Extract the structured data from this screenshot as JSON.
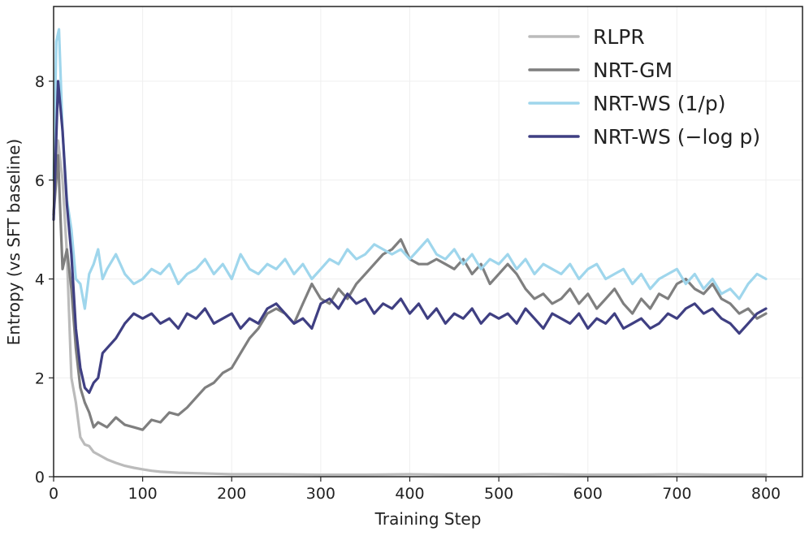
{
  "chart_data": {
    "type": "line",
    "title": "",
    "xlabel": "Training Step",
    "ylabel": "Entropy (vs SFT baseline)",
    "xlim": [
      0,
      800
    ],
    "ylim": [
      0,
      9.5
    ],
    "xticks": [
      0,
      100,
      200,
      300,
      400,
      500,
      600,
      700,
      800
    ],
    "yticks": [
      0,
      2,
      4,
      6,
      8
    ],
    "xtick_labels": [
      "0",
      "100",
      "200",
      "300",
      "400",
      "500",
      "600",
      "700",
      "800"
    ],
    "ytick_labels": [
      "0",
      "2",
      "4",
      "6",
      "8"
    ],
    "grid": true,
    "legend_position": "top-right",
    "series": [
      {
        "name": "RLPR",
        "color": "#bbbbbb",
        "x": [
          0,
          5,
          10,
          15,
          20,
          25,
          30,
          35,
          40,
          45,
          50,
          60,
          70,
          80,
          90,
          100,
          110,
          120,
          140,
          160,
          180,
          200,
          250,
          300,
          350,
          400,
          450,
          500,
          550,
          600,
          650,
          700,
          750,
          800
        ],
        "values": [
          5.3,
          6.8,
          6.0,
          4.5,
          2.0,
          1.5,
          0.8,
          0.65,
          0.62,
          0.5,
          0.45,
          0.35,
          0.28,
          0.22,
          0.18,
          0.15,
          0.12,
          0.1,
          0.08,
          0.07,
          0.06,
          0.05,
          0.05,
          0.04,
          0.04,
          0.05,
          0.04,
          0.04,
          0.05,
          0.04,
          0.04,
          0.05,
          0.04,
          0.04
        ]
      },
      {
        "name": "NRT-GM",
        "color": "#7f7f7f",
        "x": [
          0,
          5,
          10,
          15,
          20,
          25,
          30,
          35,
          40,
          45,
          50,
          60,
          70,
          80,
          90,
          100,
          110,
          120,
          130,
          140,
          150,
          160,
          170,
          180,
          190,
          200,
          210,
          220,
          230,
          240,
          250,
          260,
          270,
          280,
          290,
          300,
          310,
          320,
          330,
          340,
          350,
          360,
          370,
          380,
          390,
          400,
          410,
          420,
          430,
          440,
          450,
          460,
          470,
          480,
          490,
          500,
          510,
          520,
          530,
          540,
          550,
          560,
          570,
          580,
          590,
          600,
          610,
          620,
          630,
          640,
          650,
          660,
          670,
          680,
          690,
          700,
          710,
          720,
          730,
          740,
          750,
          760,
          770,
          780,
          790,
          800
        ],
        "values": [
          5.3,
          6.5,
          4.2,
          4.6,
          3.8,
          2.6,
          1.8,
          1.5,
          1.3,
          1.0,
          1.1,
          1.0,
          1.2,
          1.05,
          1.0,
          0.95,
          1.15,
          1.1,
          1.3,
          1.25,
          1.4,
          1.6,
          1.8,
          1.9,
          2.1,
          2.2,
          2.5,
          2.8,
          3.0,
          3.3,
          3.4,
          3.3,
          3.1,
          3.5,
          3.9,
          3.6,
          3.5,
          3.8,
          3.6,
          3.9,
          4.1,
          4.3,
          4.5,
          4.6,
          4.8,
          4.4,
          4.3,
          4.3,
          4.4,
          4.3,
          4.2,
          4.4,
          4.1,
          4.3,
          3.9,
          4.1,
          4.3,
          4.1,
          3.8,
          3.6,
          3.7,
          3.5,
          3.6,
          3.8,
          3.5,
          3.7,
          3.4,
          3.6,
          3.8,
          3.5,
          3.3,
          3.6,
          3.4,
          3.7,
          3.6,
          3.9,
          4.0,
          3.8,
          3.7,
          3.9,
          3.6,
          3.5,
          3.3,
          3.4,
          3.2,
          3.3
        ]
      },
      {
        "name": "NRT-WS (1/p)",
        "color": "#9fd6ec",
        "x": [
          0,
          3,
          6,
          10,
          15,
          20,
          25,
          30,
          35,
          40,
          45,
          50,
          55,
          60,
          70,
          80,
          90,
          100,
          110,
          120,
          130,
          140,
          150,
          160,
          170,
          180,
          190,
          200,
          210,
          220,
          230,
          240,
          250,
          260,
          270,
          280,
          290,
          300,
          310,
          320,
          330,
          340,
          350,
          360,
          370,
          380,
          390,
          400,
          410,
          420,
          430,
          440,
          450,
          460,
          470,
          480,
          490,
          500,
          510,
          520,
          530,
          540,
          550,
          560,
          570,
          580,
          590,
          600,
          610,
          620,
          630,
          640,
          650,
          660,
          670,
          680,
          690,
          700,
          710,
          720,
          730,
          740,
          750,
          760,
          770,
          780,
          790,
          800
        ],
        "values": [
          6.0,
          8.8,
          9.05,
          7.0,
          5.6,
          5.0,
          4.0,
          3.9,
          3.4,
          4.1,
          4.3,
          4.6,
          4.0,
          4.2,
          4.5,
          4.1,
          3.9,
          4.0,
          4.2,
          4.1,
          4.3,
          3.9,
          4.1,
          4.2,
          4.4,
          4.1,
          4.3,
          4.0,
          4.5,
          4.2,
          4.1,
          4.3,
          4.2,
          4.4,
          4.1,
          4.3,
          4.0,
          4.2,
          4.4,
          4.3,
          4.6,
          4.4,
          4.5,
          4.7,
          4.6,
          4.5,
          4.6,
          4.4,
          4.6,
          4.8,
          4.5,
          4.4,
          4.6,
          4.3,
          4.5,
          4.2,
          4.4,
          4.3,
          4.5,
          4.2,
          4.4,
          4.1,
          4.3,
          4.2,
          4.1,
          4.3,
          4.0,
          4.2,
          4.3,
          4.0,
          4.1,
          4.2,
          3.9,
          4.1,
          3.8,
          4.0,
          4.1,
          4.2,
          3.9,
          4.1,
          3.8,
          4.0,
          3.7,
          3.8,
          3.6,
          3.9,
          4.1,
          4.0
        ]
      },
      {
        "name": "NRT-WS (−log p)",
        "color": "#3f3f82",
        "x": [
          0,
          5,
          10,
          15,
          20,
          25,
          30,
          35,
          40,
          45,
          50,
          55,
          60,
          70,
          80,
          90,
          100,
          110,
          120,
          130,
          140,
          150,
          160,
          170,
          180,
          190,
          200,
          210,
          220,
          230,
          240,
          250,
          260,
          270,
          280,
          290,
          300,
          310,
          320,
          330,
          340,
          350,
          360,
          370,
          380,
          390,
          400,
          410,
          420,
          430,
          440,
          450,
          460,
          470,
          480,
          490,
          500,
          510,
          520,
          530,
          540,
          550,
          560,
          570,
          580,
          590,
          600,
          610,
          620,
          630,
          640,
          650,
          660,
          670,
          680,
          690,
          700,
          710,
          720,
          730,
          740,
          750,
          760,
          770,
          780,
          790,
          800
        ],
        "values": [
          5.2,
          8.0,
          7.0,
          5.5,
          4.5,
          3.0,
          2.2,
          1.8,
          1.7,
          1.9,
          2.0,
          2.5,
          2.6,
          2.8,
          3.1,
          3.3,
          3.2,
          3.3,
          3.1,
          3.2,
          3.0,
          3.3,
          3.2,
          3.4,
          3.1,
          3.2,
          3.3,
          3.0,
          3.2,
          3.1,
          3.4,
          3.5,
          3.3,
          3.1,
          3.2,
          3.0,
          3.5,
          3.6,
          3.4,
          3.7,
          3.5,
          3.6,
          3.3,
          3.5,
          3.4,
          3.6,
          3.3,
          3.5,
          3.2,
          3.4,
          3.1,
          3.3,
          3.2,
          3.4,
          3.1,
          3.3,
          3.2,
          3.3,
          3.1,
          3.4,
          3.2,
          3.0,
          3.3,
          3.2,
          3.1,
          3.3,
          3.0,
          3.2,
          3.1,
          3.3,
          3.0,
          3.1,
          3.2,
          3.0,
          3.1,
          3.3,
          3.2,
          3.4,
          3.5,
          3.3,
          3.4,
          3.2,
          3.1,
          2.9,
          3.1,
          3.3,
          3.4
        ]
      }
    ]
  }
}
